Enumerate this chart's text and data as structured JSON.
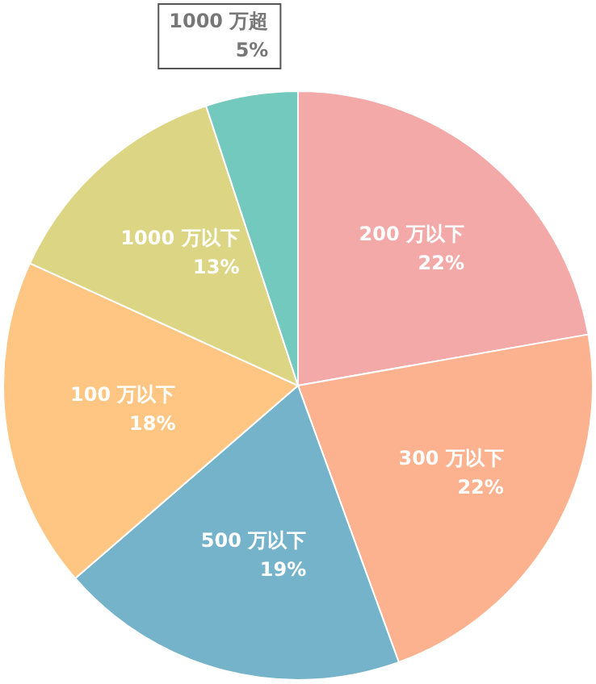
{
  "chart_data": {
    "type": "pie",
    "categories": [
      "200 万以下",
      "300 万以下",
      "500 万以下",
      "100 万以下",
      "1000 万以下",
      "1000 万超"
    ],
    "values": [
      22,
      22,
      19,
      18,
      13,
      5
    ],
    "colors": [
      "#f4a9a9",
      "#fdb28f",
      "#74b3c9",
      "#fec682",
      "#dcd684",
      "#73c9bd"
    ],
    "value_labels": [
      "22%",
      "22%",
      "19%",
      "18%",
      "13%",
      "5%"
    ],
    "legend": false
  }
}
